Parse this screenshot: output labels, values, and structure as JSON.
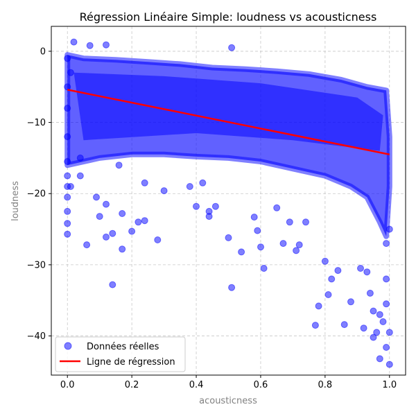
{
  "chart_data": {
    "type": "scatter",
    "title": "Régression Linéaire Simple: loudness vs acousticness",
    "xlabel": "acousticness",
    "ylabel": "loudness",
    "xlim": [
      -0.05,
      1.05
    ],
    "ylim": [
      -45.5,
      3.5
    ],
    "x_ticks": [
      0.0,
      0.2,
      0.4,
      0.6,
      0.8,
      1.0
    ],
    "x_tick_labels": [
      "0.0",
      "0.2",
      "0.4",
      "0.6",
      "0.8",
      "1.0"
    ],
    "y_ticks": [
      0,
      -10,
      -20,
      -30,
      -40
    ],
    "y_tick_labels": [
      "0",
      "−10",
      "−20",
      "−30",
      "−40"
    ],
    "grid": true,
    "legend_position": "bottom-left",
    "series": [
      {
        "name": "Données réelles",
        "kind": "scatter",
        "color": "#0000ff",
        "opacity": 0.5,
        "points": [
          [
            0.0,
            -1.0
          ],
          [
            0.0,
            -5.0
          ],
          [
            0.0,
            -8.0
          ],
          [
            0.0,
            -12.0
          ],
          [
            0.0,
            -15.5
          ],
          [
            0.0,
            -17.5
          ],
          [
            0.0,
            -19.0
          ],
          [
            0.0,
            -20.5
          ],
          [
            0.0,
            -22.5
          ],
          [
            0.0,
            -24.2
          ],
          [
            0.0,
            -25.7
          ],
          [
            0.01,
            -19.0
          ],
          [
            0.01,
            -3.0
          ],
          [
            0.02,
            1.3
          ],
          [
            0.04,
            -17.5
          ],
          [
            0.04,
            -15.0
          ],
          [
            0.06,
            -27.2
          ],
          [
            0.07,
            0.8
          ],
          [
            0.09,
            -20.5
          ],
          [
            0.1,
            -23.2
          ],
          [
            0.12,
            0.9
          ],
          [
            0.12,
            -21.5
          ],
          [
            0.12,
            -26.1
          ],
          [
            0.14,
            -25.6
          ],
          [
            0.14,
            -32.8
          ],
          [
            0.16,
            -16.0
          ],
          [
            0.17,
            -22.8
          ],
          [
            0.17,
            -27.8
          ],
          [
            0.2,
            -25.3
          ],
          [
            0.22,
            -24.0
          ],
          [
            0.24,
            -18.5
          ],
          [
            0.24,
            -23.8
          ],
          [
            0.28,
            -26.5
          ],
          [
            0.3,
            -19.6
          ],
          [
            0.38,
            -19.0
          ],
          [
            0.4,
            -21.8
          ],
          [
            0.42,
            -18.5
          ],
          [
            0.44,
            -22.5
          ],
          [
            0.44,
            -23.2
          ],
          [
            0.46,
            -21.8
          ],
          [
            0.5,
            -26.2
          ],
          [
            0.51,
            -33.2
          ],
          [
            0.51,
            0.5
          ],
          [
            0.54,
            -28.2
          ],
          [
            0.58,
            -23.3
          ],
          [
            0.59,
            -25.2
          ],
          [
            0.6,
            -27.5
          ],
          [
            0.61,
            -30.5
          ],
          [
            0.65,
            -22.0
          ],
          [
            0.67,
            -27.0
          ],
          [
            0.69,
            -24.0
          ],
          [
            0.71,
            -28.0
          ],
          [
            0.72,
            -27.2
          ],
          [
            0.74,
            -24.0
          ],
          [
            0.77,
            -38.5
          ],
          [
            0.78,
            -35.8
          ],
          [
            0.8,
            -29.5
          ],
          [
            0.81,
            -34.2
          ],
          [
            0.82,
            -32.0
          ],
          [
            0.84,
            -30.8
          ],
          [
            0.86,
            -38.4
          ],
          [
            0.88,
            -35.2
          ],
          [
            0.91,
            -30.5
          ],
          [
            0.92,
            -38.9
          ],
          [
            0.93,
            -31.0
          ],
          [
            0.94,
            -34.0
          ],
          [
            0.95,
            -40.2
          ],
          [
            0.95,
            -36.5
          ],
          [
            0.96,
            -39.5
          ],
          [
            0.97,
            -43.2
          ],
          [
            0.97,
            -37.0
          ],
          [
            0.98,
            -38.0
          ],
          [
            0.99,
            -41.6
          ],
          [
            0.99,
            -35.5
          ],
          [
            0.99,
            -32.0
          ],
          [
            0.99,
            -27.0
          ],
          [
            1.0,
            -39.5
          ],
          [
            1.0,
            -44.0
          ],
          [
            1.0,
            -25.0
          ]
        ]
      },
      {
        "name": "Ligne de régression",
        "kind": "line",
        "color": "#ff0000",
        "x": [
          0.0,
          1.0
        ],
        "y": [
          -5.4,
          -14.5
        ]
      }
    ]
  }
}
